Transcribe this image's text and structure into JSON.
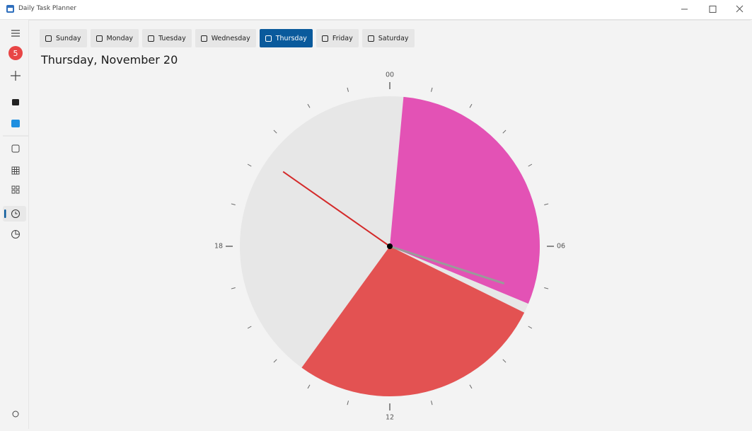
{
  "window": {
    "title": "Daily Task Planner"
  },
  "sidebar": {
    "badge": "5"
  },
  "tabs": {
    "items": [
      "Sunday",
      "Monday",
      "Tuesday",
      "Wednesday",
      "Thursday",
      "Friday",
      "Saturday"
    ],
    "selected": 4
  },
  "heading": "Thursday, November 20",
  "clock": {
    "hour_labels": [
      {
        "hour": 0,
        "label": "00"
      },
      {
        "hour": 6,
        "label": "06"
      },
      {
        "hour": 12,
        "label": "12"
      },
      {
        "hour": 18,
        "label": "18"
      }
    ],
    "segments": [
      {
        "start": 0.35,
        "end": 7.5,
        "color": "#e352b5"
      },
      {
        "start": 7.75,
        "end": 14.4,
        "color": "#e35252"
      }
    ]
  }
}
